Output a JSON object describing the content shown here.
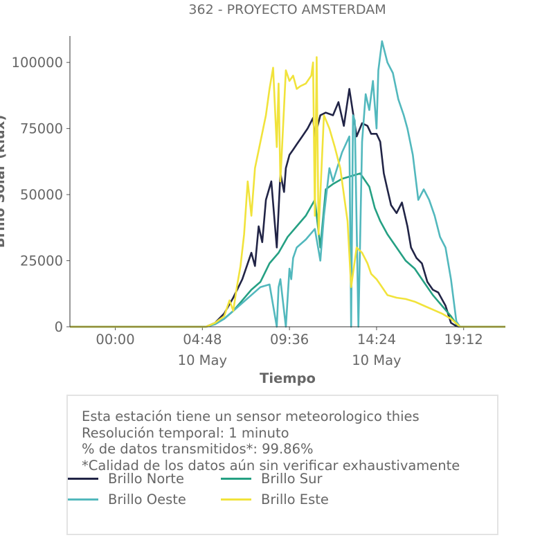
{
  "chart_data": {
    "type": "line",
    "title": "362 - PROYECTO AMSTERDAM",
    "xlabel": "Tiempo",
    "ylabel": "Brillo Solar (klux)",
    "ylim": [
      0,
      110000
    ],
    "yticks": [
      0,
      25000,
      50000,
      75000,
      100000
    ],
    "ytick_labels": [
      "0",
      "25000",
      "50000",
      "75000",
      "100000"
    ],
    "xlim_hours": [
      -2.5,
      21.5
    ],
    "xticks_hours": [
      0,
      4.8,
      9.6,
      14.4,
      19.2
    ],
    "xtick_labels": [
      "00:00",
      "04:48",
      "09:36",
      "14:24",
      "19:12"
    ],
    "xtick_date_labels": [
      "",
      "10 May",
      "",
      "10 May",
      ""
    ],
    "grid": false,
    "legend_position": "bottom",
    "series": [
      {
        "name": "Brillo Norte",
        "color": "#212446",
        "x": [
          -2.5,
          5.0,
          5.5,
          6.0,
          6.5,
          7.0,
          7.5,
          7.7,
          7.9,
          8.1,
          8.3,
          8.6,
          8.9,
          9.1,
          9.3,
          9.4,
          9.6,
          9.8,
          10.0,
          10.3,
          10.6,
          10.9,
          11.0,
          11.3,
          11.6,
          12.0,
          12.3,
          12.6,
          12.9,
          13.3,
          13.6,
          13.9,
          14.1,
          14.4,
          14.6,
          14.8,
          15.0,
          15.2,
          15.5,
          15.8,
          16.1,
          16.3,
          16.6,
          16.9,
          17.2,
          17.5,
          17.8,
          18.2,
          18.5,
          18.8,
          19.0,
          19.3,
          21.5
        ],
        "y": [
          0,
          0,
          1500,
          5000,
          11000,
          18000,
          28000,
          23000,
          38000,
          32000,
          48000,
          55000,
          30000,
          58000,
          51000,
          60000,
          65000,
          67000,
          69000,
          72000,
          75000,
          79000,
          72000,
          80000,
          81000,
          80000,
          85000,
          76000,
          90000,
          72000,
          77000,
          76000,
          73000,
          73000,
          70000,
          58000,
          52000,
          46000,
          43000,
          47000,
          38000,
          30000,
          26000,
          24000,
          17000,
          14000,
          13000,
          8000,
          1500,
          200,
          0,
          0,
          0
        ]
      },
      {
        "name": "Brillo Sur",
        "color": "#25a083",
        "x": [
          -2.5,
          5.0,
          5.5,
          6.0,
          6.5,
          7.0,
          7.5,
          8.0,
          8.5,
          9.0,
          9.5,
          10.0,
          10.5,
          11.0,
          11.3,
          11.6,
          12.0,
          12.5,
          13.0,
          13.5,
          14.0,
          14.3,
          14.6,
          15.0,
          15.5,
          16.0,
          16.5,
          17.0,
          17.5,
          18.0,
          18.5,
          18.8,
          19.0,
          19.3,
          21.5
        ],
        "y": [
          0,
          0,
          1000,
          3000,
          6000,
          10000,
          14000,
          17000,
          24000,
          28000,
          34000,
          38000,
          42000,
          48000,
          30000,
          52000,
          54000,
          56000,
          57000,
          58000,
          53000,
          45000,
          40000,
          35000,
          30000,
          25000,
          22000,
          17000,
          12000,
          8000,
          4000,
          1000,
          0,
          0,
          0
        ]
      },
      {
        "name": "Brillo Oeste",
        "color": "#52b8bd",
        "x": [
          -2.5,
          5.0,
          5.5,
          6.0,
          6.5,
          7.0,
          7.5,
          8.0,
          8.5,
          8.9,
          9.0,
          9.1,
          9.4,
          9.6,
          9.7,
          9.8,
          10.0,
          10.5,
          11.0,
          11.3,
          11.5,
          11.8,
          12.0,
          12.5,
          12.9,
          13.0,
          13.1,
          13.2,
          13.4,
          13.6,
          13.8,
          14.0,
          14.2,
          14.4,
          14.5,
          14.7,
          15.0,
          15.3,
          15.6,
          15.9,
          16.1,
          16.4,
          16.7,
          17.0,
          17.3,
          17.6,
          17.9,
          18.2,
          18.5,
          18.8,
          19.0,
          19.3,
          21.5
        ],
        "y": [
          0,
          0,
          1000,
          3000,
          6000,
          9000,
          12000,
          15000,
          16000,
          0,
          15000,
          18000,
          0,
          22000,
          18000,
          26000,
          30000,
          33000,
          37000,
          25000,
          42000,
          60000,
          55000,
          66000,
          72000,
          0,
          80000,
          78000,
          0,
          70000,
          88000,
          82000,
          93000,
          75000,
          97000,
          108000,
          100000,
          96000,
          86000,
          80000,
          75000,
          65000,
          48000,
          52000,
          48000,
          42000,
          34000,
          30000,
          18000,
          2000,
          0,
          0,
          0
        ]
      },
      {
        "name": "Brillo Este",
        "color": "#f1e33b",
        "x": [
          -2.5,
          5.0,
          5.5,
          6.0,
          6.3,
          6.5,
          6.7,
          6.9,
          7.1,
          7.3,
          7.5,
          7.7,
          8.0,
          8.3,
          8.5,
          8.7,
          8.9,
          9.0,
          9.1,
          9.4,
          9.6,
          9.8,
          10.0,
          10.2,
          10.5,
          10.8,
          10.9,
          11.0,
          11.1,
          11.2,
          11.5,
          11.8,
          12.1,
          12.4,
          12.6,
          12.8,
          13.0,
          13.3,
          13.6,
          13.9,
          14.1,
          14.4,
          14.6,
          14.8,
          15.0,
          15.5,
          16.0,
          16.5,
          17.0,
          17.5,
          18.0,
          18.5,
          18.8,
          19.0,
          19.3,
          21.5
        ],
        "y": [
          0,
          0,
          1500,
          4000,
          10000,
          6000,
          15000,
          23000,
          35000,
          55000,
          42000,
          60000,
          70000,
          80000,
          90000,
          98000,
          68000,
          92000,
          55000,
          97000,
          93000,
          95000,
          90000,
          91000,
          92000,
          95000,
          100000,
          42000,
          102000,
          35000,
          80000,
          75000,
          68000,
          60000,
          50000,
          40000,
          15000,
          30000,
          28000,
          24000,
          20000,
          18000,
          16000,
          14000,
          12000,
          11000,
          10500,
          9500,
          8000,
          6500,
          5000,
          3000,
          1200,
          0,
          0,
          0
        ]
      }
    ]
  },
  "info": {
    "lines": [
      "Esta estación tiene un sensor meteorologico thies",
      "Resolución temporal: 1 minuto",
      "% de datos transmitidos*: 99.86%",
      "*Calidad de los datos aún sin verificar exhaustivamente"
    ]
  }
}
